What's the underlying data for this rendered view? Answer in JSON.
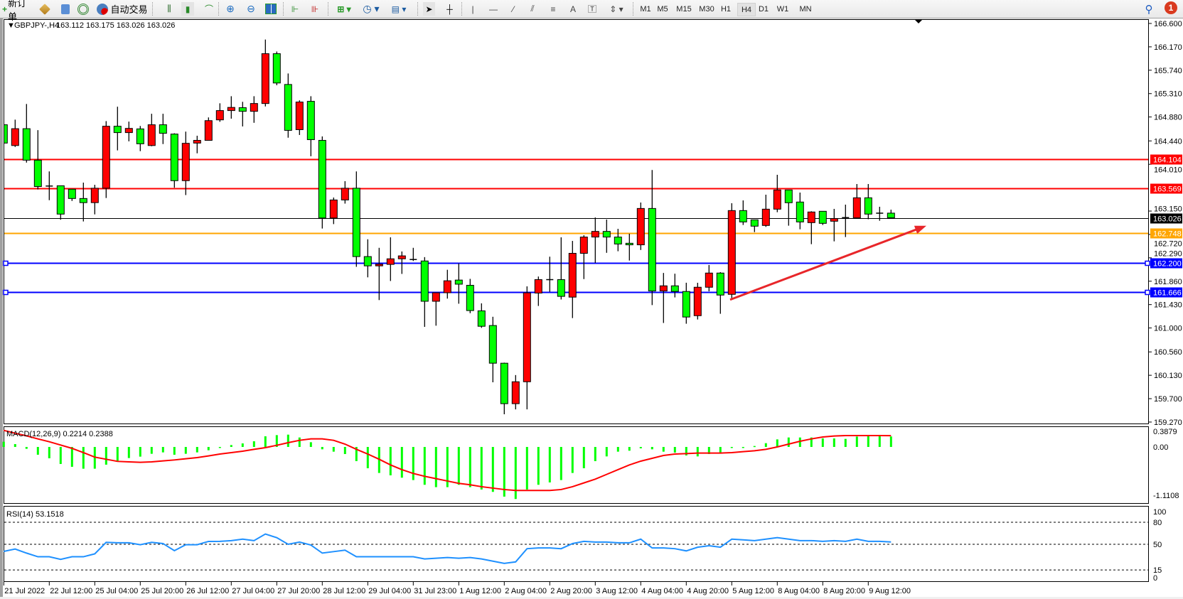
{
  "toolbar": {
    "new_order": "新订单",
    "auto_trading": "自动交易",
    "timeframes": [
      "M1",
      "M5",
      "M15",
      "M30",
      "H1",
      "H4",
      "D1",
      "W1",
      "MN"
    ],
    "active_timeframe": "H4",
    "notification_count": "1",
    "icons": [
      "new-order-icon",
      "market-watch-icon",
      "navigator-icon",
      "signals-icon",
      "auto-trading-icon",
      "bar-chart-icon",
      "candlestick-icon",
      "line-chart-icon",
      "zoom-in-icon",
      "zoom-out-icon",
      "tile-windows-icon",
      "chart-shift-icon",
      "autoscroll-icon",
      "new-chart-icon",
      "periods-icon",
      "templates-icon",
      "cursor-icon",
      "crosshair-icon",
      "vertical-line-icon",
      "horizontal-line-icon",
      "trendline-icon",
      "equidistant-channel-icon",
      "fibonacci-icon",
      "text-icon",
      "text-label-icon",
      "arrows-icon",
      "search-icon",
      "notification-icon"
    ]
  },
  "chart": {
    "symbol": "GBPJPY-,H4",
    "ohlc_text": "163.112 163.175 163.026 163.026",
    "macd_label": "MACD(12,26,9) 0.2214 0.2388",
    "rsi_label": "RSI(14) 53.1518"
  },
  "chart_data": {
    "type": "candlestick",
    "timeframe": "H4",
    "colors": {
      "bullish": "#ff0000",
      "bearish": "#00ff00",
      "wick": "#000000",
      "background": "#ffffff"
    },
    "price_ticks": [
      "166.600",
      "166.170",
      "165.740",
      "165.310",
      "164.880",
      "164.440",
      "164.010",
      "163.150",
      "162.720",
      "162.290",
      "161.860",
      "161.430",
      "161.000",
      "160.560",
      "160.130",
      "159.700",
      "159.270"
    ],
    "time_labels": [
      "21 Jul 2022",
      "22 Jul 12:00",
      "25 Jul 04:00",
      "25 Jul 20:00",
      "26 Jul 12:00",
      "27 Jul 04:00",
      "27 Jul 20:00",
      "28 Jul 12:00",
      "29 Jul 04:00",
      "31 Jul 23:00",
      "1 Aug 12:00",
      "2 Aug 04:00",
      "2 Aug 20:00",
      "3 Aug 12:00",
      "4 Aug 04:00",
      "4 Aug 20:00",
      "5 Aug 12:00",
      "8 Aug 04:00",
      "8 Aug 20:00",
      "9 Aug 12:00"
    ],
    "horizontal_lines": [
      {
        "price": 164.104,
        "label": "164.104",
        "color": "#ff0000"
      },
      {
        "price": 163.569,
        "label": "163.569",
        "color": "#ff0000"
      },
      {
        "price": 163.026,
        "label": "163.026",
        "color": "#000000",
        "thin": true
      },
      {
        "price": 162.748,
        "label": "162.748",
        "color": "#ffa500"
      },
      {
        "price": 162.2,
        "label": "162.200",
        "color": "#0000ff",
        "handles": true
      },
      {
        "price": 161.666,
        "label": "161.666",
        "color": "#0000ff",
        "handles": true
      }
    ],
    "trend_arrow": {
      "color": "#e8262a",
      "from_price": 161.52,
      "to_price": 162.88
    },
    "candles": [
      [
        164.737,
        164.948,
        164.387,
        164.4
      ],
      [
        164.355,
        164.831,
        164.329,
        164.665
      ],
      [
        164.665,
        165.119,
        164.041,
        164.086
      ],
      [
        164.086,
        164.638,
        163.547,
        163.601
      ],
      [
        163.61,
        163.879,
        163.35,
        163.606
      ],
      [
        163.615,
        163.62,
        162.991,
        163.094
      ],
      [
        163.552,
        163.556,
        163.336,
        163.381
      ],
      [
        163.381,
        163.673,
        162.959,
        163.305
      ],
      [
        163.305,
        163.633,
        163.089,
        163.57
      ],
      [
        163.57,
        164.804,
        163.39,
        164.71
      ],
      [
        164.71,
        165.069,
        164.266,
        164.593
      ],
      [
        164.593,
        164.795,
        164.432,
        164.67
      ],
      [
        164.661,
        164.715,
        164.252,
        164.387
      ],
      [
        164.355,
        164.939,
        164.342,
        164.737
      ],
      [
        164.737,
        164.939,
        164.382,
        164.58
      ],
      [
        164.566,
        164.58,
        163.579,
        163.709
      ],
      [
        163.709,
        164.611,
        163.444,
        164.396
      ],
      [
        164.4,
        164.535,
        164.212,
        164.45
      ],
      [
        164.45,
        164.872,
        164.445,
        164.813
      ],
      [
        164.827,
        165.132,
        164.791,
        164.998
      ],
      [
        164.998,
        165.262,
        164.849,
        165.056
      ],
      [
        165.051,
        165.159,
        164.706,
        164.984
      ],
      [
        164.984,
        165.262,
        164.773,
        165.128
      ],
      [
        165.128,
        166.304,
        165.074,
        166.044
      ],
      [
        166.044,
        166.084,
        165.464,
        165.505
      ],
      [
        165.478,
        165.68,
        164.499,
        164.634
      ],
      [
        164.647,
        165.186,
        164.549,
        165.155
      ],
      [
        165.168,
        165.262,
        164.158,
        164.463
      ],
      [
        164.45,
        164.522,
        162.829,
        163.022
      ],
      [
        163.022,
        163.399,
        162.91,
        163.354
      ],
      [
        163.354,
        163.7,
        163.287,
        163.57
      ],
      [
        163.57,
        163.879,
        162.124,
        162.313
      ],
      [
        162.313,
        162.631,
        161.931,
        162.142
      ],
      [
        162.142,
        162.474,
        161.513,
        162.173
      ],
      [
        162.169,
        162.667,
        161.864,
        162.272
      ],
      [
        162.272,
        162.407,
        161.994,
        162.326
      ],
      [
        162.259,
        162.474,
        162.232,
        162.259
      ],
      [
        162.232,
        162.303,
        161.02,
        161.491
      ],
      [
        161.491,
        161.648,
        161.042,
        161.648
      ],
      [
        161.648,
        162.07,
        161.54,
        161.868
      ],
      [
        161.881,
        162.186,
        161.446,
        161.805
      ],
      [
        161.785,
        161.903,
        161.272,
        161.32
      ],
      [
        161.315,
        161.453,
        161.002,
        161.031
      ],
      [
        161.045,
        161.206,
        160.001,
        160.352
      ],
      [
        160.352,
        160.362,
        159.413,
        159.608
      ],
      [
        159.608,
        160.134,
        159.503,
        160.011
      ],
      [
        160.011,
        161.766,
        159.503,
        161.647
      ],
      [
        161.642,
        161.946,
        161.405,
        161.889
      ],
      [
        161.889,
        162.311,
        161.666,
        161.889
      ],
      [
        161.889,
        162.667,
        161.524,
        161.581
      ],
      [
        161.567,
        162.601,
        161.182,
        162.373
      ],
      [
        162.373,
        162.705,
        161.899,
        162.672
      ],
      [
        162.672,
        163.032,
        162.197,
        162.776
      ],
      [
        162.776,
        162.994,
        162.382,
        162.672
      ],
      [
        162.672,
        162.823,
        162.411,
        162.544
      ],
      [
        162.558,
        162.733,
        162.24,
        162.529
      ],
      [
        162.529,
        163.307,
        162.434,
        163.198
      ],
      [
        163.198,
        163.905,
        161.42,
        161.68
      ],
      [
        161.68,
        162.012,
        161.092,
        161.775
      ],
      [
        161.775,
        161.998,
        161.562,
        161.671
      ],
      [
        161.671,
        161.832,
        161.078,
        161.201
      ],
      [
        161.226,
        161.831,
        161.156,
        161.749
      ],
      [
        161.749,
        162.158,
        161.674,
        162.01
      ],
      [
        162.01,
        162.027,
        161.261,
        161.605
      ],
      [
        161.618,
        163.294,
        161.531,
        163.159
      ],
      [
        163.159,
        163.346,
        162.894,
        162.95
      ],
      [
        162.989,
        162.989,
        162.763,
        162.872
      ],
      [
        162.885,
        163.451,
        162.859,
        163.185
      ],
      [
        163.185,
        163.817,
        163.129,
        163.538
      ],
      [
        163.538,
        163.538,
        162.881,
        163.303
      ],
      [
        163.316,
        163.49,
        162.815,
        162.95
      ],
      [
        162.937,
        163.146,
        162.541,
        163.133
      ],
      [
        163.146,
        163.146,
        162.894,
        162.924
      ],
      [
        162.963,
        163.19,
        162.593,
        163.011
      ],
      [
        163.02,
        163.268,
        162.672,
        163.029
      ],
      [
        163.024,
        163.647,
        163.02,
        163.394
      ],
      [
        163.394,
        163.647,
        163.0,
        163.094
      ],
      [
        163.111,
        163.229,
        162.972,
        163.111
      ],
      [
        163.112,
        163.175,
        163.026,
        163.026
      ]
    ],
    "macd": {
      "params": "12,26,9",
      "ticks": [
        "0.3879",
        "0.00",
        "-1.1108"
      ],
      "range": [
        -1.1108,
        0.3879
      ],
      "histogram_color": "#00ff00",
      "signal_color": "#ff0000",
      "histogram": [
        0.11,
        0.06,
        -0.04,
        -0.165,
        -0.24,
        -0.36,
        -0.42,
        -0.46,
        -0.46,
        -0.375,
        -0.315,
        -0.235,
        -0.205,
        -0.145,
        -0.115,
        -0.165,
        -0.145,
        -0.115,
        -0.07,
        -0.01,
        0.04,
        0.075,
        0.12,
        0.225,
        0.25,
        0.26,
        0.2,
        0.1,
        -0.05,
        -0.1,
        -0.15,
        -0.3,
        -0.45,
        -0.55,
        -0.6,
        -0.65,
        -0.7,
        -0.8,
        -0.85,
        -0.85,
        -0.8,
        -0.85,
        -0.9,
        -0.95,
        -1.05,
        -1.1,
        -0.9,
        -0.8,
        -0.75,
        -0.7,
        -0.55,
        -0.45,
        -0.3,
        -0.2,
        -0.1,
        -0.08,
        -0.03,
        -0.05,
        -0.1,
        -0.12,
        -0.18,
        -0.2,
        -0.15,
        -0.12,
        -0.02,
        0.0,
        0.02,
        0.08,
        0.16,
        0.2,
        0.2,
        0.2,
        0.18,
        0.18,
        0.17,
        0.22,
        0.24,
        0.23,
        0.2214
      ],
      "signal": [
        0.35,
        0.29,
        0.235,
        0.17,
        0.11,
        0.04,
        -0.03,
        -0.12,
        -0.215,
        -0.26,
        -0.305,
        -0.315,
        -0.325,
        -0.315,
        -0.295,
        -0.275,
        -0.25,
        -0.225,
        -0.19,
        -0.15,
        -0.12,
        -0.09,
        -0.05,
        -0.015,
        0.035,
        0.09,
        0.14,
        0.17,
        0.17,
        0.14,
        0.06,
        -0.05,
        -0.15,
        -0.26,
        -0.38,
        -0.48,
        -0.56,
        -0.62,
        -0.67,
        -0.72,
        -0.77,
        -0.8,
        -0.84,
        -0.87,
        -0.9,
        -0.92,
        -0.92,
        -0.92,
        -0.92,
        -0.9,
        -0.84,
        -0.76,
        -0.68,
        -0.58,
        -0.48,
        -0.38,
        -0.3,
        -0.24,
        -0.18,
        -0.15,
        -0.14,
        -0.13,
        -0.13,
        -0.13,
        -0.12,
        -0.1,
        -0.08,
        -0.05,
        0.0,
        0.06,
        0.12,
        0.17,
        0.21,
        0.23,
        0.24,
        0.24,
        0.24,
        0.24,
        0.2388
      ]
    },
    "rsi": {
      "period": 14,
      "ticks": [
        "100",
        "80",
        "50",
        "15",
        "0"
      ],
      "levels": [
        80,
        50,
        15
      ],
      "range": [
        0,
        100
      ],
      "color": "#1e90ff",
      "values": [
        40.3,
        43.5,
        38,
        33,
        33,
        29.4,
        33,
        33,
        37,
        52.6,
        52,
        52,
        49.4,
        52.6,
        51,
        41.3,
        49.4,
        49.4,
        53.9,
        54,
        55,
        57,
        55,
        64,
        59,
        50,
        53,
        49,
        38,
        40,
        42,
        33,
        33,
        33,
        33,
        33,
        33,
        30,
        31,
        32,
        31,
        32,
        30,
        27,
        24,
        26,
        44,
        45,
        45,
        44,
        51,
        54,
        53,
        53,
        52,
        52,
        57,
        45,
        45,
        44,
        41,
        46,
        48,
        46,
        57,
        56,
        55,
        57,
        59,
        57,
        55,
        55,
        54,
        55,
        54,
        57,
        54,
        54,
        53.1518
      ]
    }
  }
}
